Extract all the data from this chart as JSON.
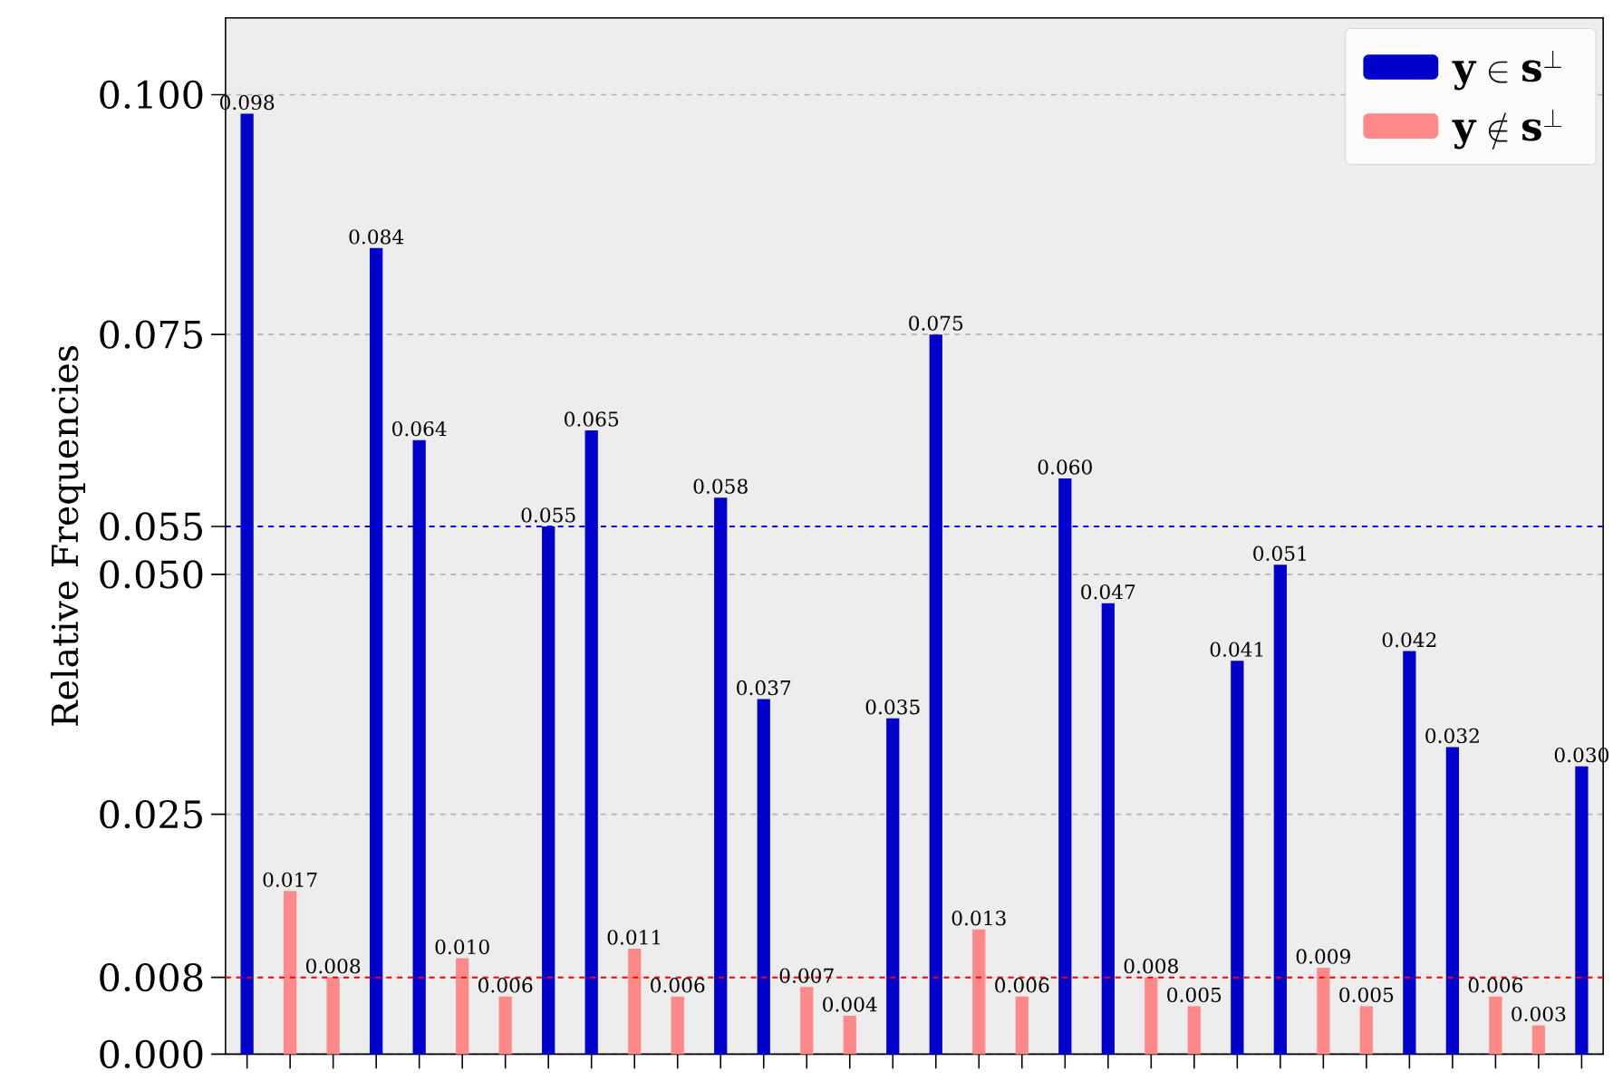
{
  "chart_data": {
    "type": "bar",
    "ylabel": "Relative Frequencies",
    "categories": [
      null,
      null,
      null,
      null,
      null,
      null,
      null,
      null,
      null,
      null,
      null,
      null,
      null,
      null,
      null,
      null,
      null,
      null,
      null,
      null,
      null,
      null,
      null,
      null,
      null,
      null,
      null,
      null,
      null,
      null,
      null,
      null
    ],
    "series": [
      {
        "name": "\\mathbf{y} \\in \\mathbf{s}^{\\perp}",
        "color": "#0000cc",
        "values": [
          0.098,
          null,
          null,
          0.084,
          0.064,
          null,
          null,
          0.055,
          0.065,
          null,
          null,
          0.058,
          0.037,
          null,
          null,
          0.035,
          0.075,
          null,
          null,
          0.06,
          0.047,
          null,
          null,
          0.041,
          0.051,
          null,
          null,
          0.042,
          0.032,
          null,
          null,
          0.03
        ],
        "value_labels": [
          "0.098",
          null,
          null,
          "0.084",
          "0.064",
          null,
          null,
          "0.055",
          "0.065",
          null,
          null,
          "0.058",
          "0.037",
          null,
          null,
          "0.035",
          "0.075",
          null,
          null,
          "0.060",
          "0.047",
          null,
          null,
          "0.041",
          "0.051",
          null,
          null,
          "0.042",
          "0.032",
          null,
          null,
          "0.030"
        ]
      },
      {
        "name": "\\mathbf{y} \\notin \\mathbf{s}^{\\perp}",
        "color": "#ff8888",
        "values": [
          null,
          0.017,
          0.008,
          null,
          null,
          0.01,
          0.006,
          null,
          null,
          0.011,
          0.006,
          null,
          null,
          0.007,
          0.004,
          null,
          null,
          0.013,
          0.006,
          null,
          null,
          0.008,
          0.005,
          null,
          null,
          0.009,
          0.005,
          null,
          null,
          0.006,
          0.003,
          null
        ],
        "value_labels": [
          null,
          "0.017",
          "0.008",
          null,
          null,
          "0.010",
          "0.006",
          null,
          null,
          "0.011",
          "0.006",
          null,
          null,
          "0.007",
          "0.004",
          null,
          null,
          "0.013",
          "0.006",
          null,
          null,
          "0.008",
          "0.005",
          null,
          null,
          "0.009",
          "0.005",
          null,
          null,
          "0.006",
          "0.003",
          null
        ]
      }
    ],
    "ylim": [
      0,
      0.108
    ],
    "yticks": [
      {
        "value": 0,
        "label": "0.000"
      },
      {
        "value": 0.008,
        "label": "0.008"
      },
      {
        "value": 0.025,
        "label": "0.025"
      },
      {
        "value": 0.05,
        "label": "0.050"
      },
      {
        "value": 0.055,
        "label": "0.055"
      },
      {
        "value": 0.075,
        "label": "0.075"
      },
      {
        "value": 0.1,
        "label": "0.100"
      }
    ],
    "ref_lines": [
      {
        "axis": "y",
        "value": 0.055,
        "color": "#0000ff",
        "line_style": "dashed"
      },
      {
        "axis": "y",
        "value": 0.008,
        "color": "#ff0000",
        "line_style": "dashed"
      }
    ],
    "grid": "y",
    "legend": "top right",
    "tick_labels": "y"
  }
}
